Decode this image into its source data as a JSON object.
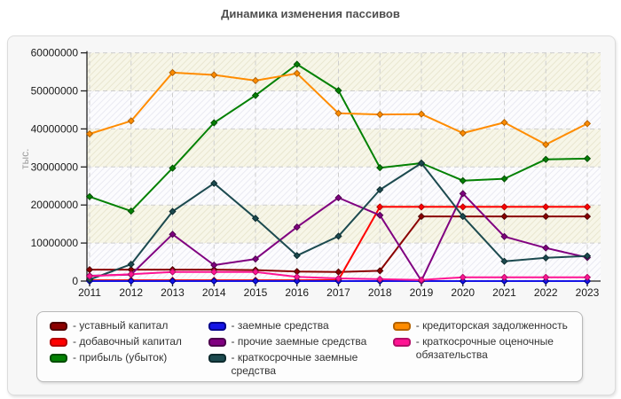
{
  "chart_data": {
    "type": "line",
    "title": "Динамика изменения пассивов",
    "ylabel": "тыс.",
    "xlabel": "",
    "ylim": [
      0,
      60000000
    ],
    "ytick_step": 10000000,
    "yticks": [
      "0",
      "10000000",
      "20000000",
      "30000000",
      "40000000",
      "50000000",
      "60000000"
    ],
    "grid": "dashed",
    "legend_position": "bottom",
    "categories": [
      2011,
      2012,
      2013,
      2014,
      2015,
      2016,
      2017,
      2018,
      2019,
      2020,
      2021,
      2022,
      2023
    ],
    "series": [
      {
        "name": "уставный капитал",
        "color": "#8b0000",
        "border": "#4d0000",
        "values": [
          3000000,
          3000000,
          3000000,
          3000000,
          2900000,
          2500000,
          2400000,
          2700000,
          17000000,
          17000000,
          17000000,
          17000000,
          17000000
        ]
      },
      {
        "name": "добавочный капитал",
        "color": "#ff0000",
        "border": "#b30000",
        "values": [
          200000,
          200000,
          200000,
          200000,
          200000,
          200000,
          300000,
          19500000,
          19500000,
          19500000,
          19500000,
          19500000,
          19500000
        ]
      },
      {
        "name": "прибыль (убыток)",
        "color": "#038103",
        "border": "#014d01",
        "values": [
          22200000,
          18400000,
          29700000,
          41600000,
          48800000,
          57000000,
          50100000,
          29800000,
          31000000,
          26400000,
          26900000,
          32000000,
          32200000
        ]
      },
      {
        "name": "заемные средства",
        "color": "#1414e6",
        "border": "#00008b",
        "values": [
          0,
          0,
          0,
          0,
          0,
          0,
          0,
          0,
          0,
          0,
          0,
          0,
          0
        ]
      },
      {
        "name": "прочие заемные средства",
        "color": "#800080",
        "border": "#4d004d",
        "values": [
          1400000,
          1700000,
          12300000,
          4200000,
          5800000,
          14200000,
          21900000,
          17300000,
          100000,
          23000000,
          11700000,
          8700000,
          6200000
        ]
      },
      {
        "name": "краткосрочные заемные средства",
        "color": "#1c4a4f",
        "border": "#0d2b2e",
        "values": [
          400000,
          4400000,
          18300000,
          25700000,
          16500000,
          6700000,
          11800000,
          24000000,
          31000000,
          17000000,
          5200000,
          6100000,
          6600000
        ]
      },
      {
        "name": "кредиторская задолженность",
        "color": "#ff8c00",
        "border": "#b36200",
        "values": [
          38700000,
          42100000,
          54800000,
          54200000,
          52700000,
          54600000,
          44100000,
          43800000,
          43900000,
          38900000,
          41700000,
          35900000,
          41400000
        ]
      },
      {
        "name": "краткосрочные оценочные обязательства",
        "color": "#ff1493",
        "border": "#b30e67",
        "values": [
          1300000,
          1800000,
          2400000,
          2400000,
          2400000,
          1100000,
          700000,
          500000,
          300000,
          1000000,
          1000000,
          1000000,
          1000000
        ]
      }
    ],
    "legend_columns": [
      [
        0,
        1,
        2
      ],
      [
        3,
        4,
        5
      ],
      [
        6,
        7
      ]
    ],
    "legend_dash_prefix": "- "
  },
  "colors": {
    "band_yellow": "#f7f6e8",
    "band_yellow_stripe": "#e9e6d0",
    "band_white": "#fcfcfe",
    "band_white_stripe": "#eaeaf2",
    "grid": "#cdcdcd",
    "axis": "#222222",
    "tick_text": "#1a1a1a"
  }
}
